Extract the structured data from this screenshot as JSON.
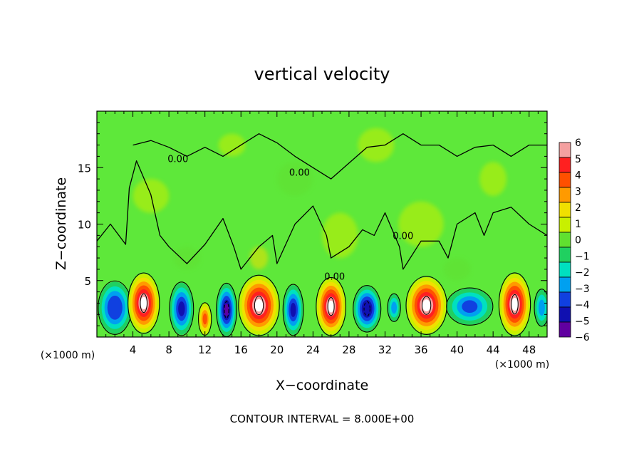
{
  "chart_data": {
    "type": "heatmap",
    "title": "vertical velocity",
    "xlabel": "X−coordinate",
    "ylabel": "Z−coordinate",
    "x_unit_left": "(×1000 m)",
    "x_unit_right": "(×1000 m)",
    "xlim": [
      0,
      50
    ],
    "ylim": [
      0,
      20
    ],
    "x_ticks": [
      4,
      8,
      12,
      16,
      20,
      24,
      28,
      32,
      36,
      40,
      44,
      48
    ],
    "y_ticks": [
      5,
      10,
      15
    ],
    "contour_label": "0.00",
    "colorbar": {
      "levels": [
        6,
        5,
        4,
        3,
        2,
        1,
        0,
        -1,
        -2,
        -3,
        -4,
        -5,
        -6
      ],
      "tick_labels": [
        "6",
        "5",
        "4",
        "3",
        "2",
        "1",
        "0",
        "−1",
        "−2",
        "−3",
        "−4",
        "−5",
        "−6"
      ],
      "colors": [
        "#f4a0a0",
        "#ff2020",
        "#ff5000",
        "#ff9a00",
        "#f0e000",
        "#c8f000",
        "#60e030",
        "#20d060",
        "#00e0c0",
        "#00a0f0",
        "#1040e0",
        "#1010b0",
        "#6000a0"
      ]
    },
    "background_color": "#5ee83a",
    "cells": [
      {
        "x": 2.0,
        "z": 2.6,
        "w": 3.6,
        "h": 4.6,
        "value": -4.5
      },
      {
        "x": 5.2,
        "z": 3.0,
        "w": 3.4,
        "h": 5.2,
        "value": 7.0
      },
      {
        "x": 9.4,
        "z": 2.5,
        "w": 2.6,
        "h": 4.6,
        "value": -5.0
      },
      {
        "x": 12.0,
        "z": 1.6,
        "w": 1.4,
        "h": 2.8,
        "value": 4.0
      },
      {
        "x": 14.4,
        "z": 2.4,
        "w": 2.2,
        "h": 4.6,
        "value": -6.0
      },
      {
        "x": 18.0,
        "z": 2.8,
        "w": 4.4,
        "h": 5.2,
        "value": 7.0
      },
      {
        "x": 21.8,
        "z": 2.4,
        "w": 2.2,
        "h": 4.4,
        "value": -5.0
      },
      {
        "x": 26.0,
        "z": 2.7,
        "w": 3.2,
        "h": 5.0,
        "value": 7.0
      },
      {
        "x": 30.0,
        "z": 2.5,
        "w": 3.0,
        "h": 4.0,
        "value": -5.5
      },
      {
        "x": 33.0,
        "z": 2.6,
        "w": 1.4,
        "h": 2.4,
        "value": -3.0
      },
      {
        "x": 36.6,
        "z": 2.8,
        "w": 4.4,
        "h": 5.0,
        "value": 7.0
      },
      {
        "x": 41.4,
        "z": 2.7,
        "w": 5.0,
        "h": 3.2,
        "value": -4.0
      },
      {
        "x": 46.4,
        "z": 2.9,
        "w": 3.4,
        "h": 5.4,
        "value": 7.0
      },
      {
        "x": 49.4,
        "z": 2.6,
        "w": 1.6,
        "h": 3.2,
        "value": -3.0
      }
    ],
    "texture": [
      {
        "x": 6.0,
        "z": 12.5,
        "w": 4.0,
        "h": 3.0,
        "value": 1.0
      },
      {
        "x": 15.0,
        "z": 17.0,
        "w": 3.0,
        "h": 2.0,
        "value": 1.0
      },
      {
        "x": 27.0,
        "z": 9.0,
        "w": 4.0,
        "h": 4.0,
        "value": 1.0
      },
      {
        "x": 36.0,
        "z": 10.0,
        "w": 5.0,
        "h": 4.0,
        "value": 1.0
      },
      {
        "x": 18.0,
        "z": 7.0,
        "w": 2.0,
        "h": 2.0,
        "value": 1.5
      },
      {
        "x": 44.0,
        "z": 14.0,
        "w": 3.0,
        "h": 3.0,
        "value": 1.0
      },
      {
        "x": 31.0,
        "z": 17.0,
        "w": 4.0,
        "h": 3.0,
        "value": 1.0
      },
      {
        "x": 10.0,
        "z": 7.0,
        "w": 3.0,
        "h": 2.0,
        "value": 0.0
      },
      {
        "x": 40.0,
        "z": 6.0,
        "w": 3.0,
        "h": 2.0,
        "value": 0.0
      },
      {
        "x": 22.0,
        "z": 14.0,
        "w": 4.0,
        "h": 3.0,
        "value": 0.0
      }
    ],
    "contour_path": [
      [
        0.0,
        8.5
      ],
      [
        1.5,
        10.0
      ],
      [
        3.2,
        8.2
      ],
      [
        3.6,
        13.2
      ],
      [
        4.4,
        15.6
      ],
      [
        6.0,
        12.6
      ],
      [
        7.0,
        9.0
      ],
      [
        8.0,
        8.0
      ],
      [
        10.0,
        6.5
      ],
      [
        12.0,
        8.2
      ],
      [
        14.0,
        10.5
      ],
      [
        15.2,
        8.0
      ],
      [
        16.0,
        6.0
      ],
      [
        18.0,
        8.0
      ],
      [
        19.5,
        9.0
      ],
      [
        20.0,
        6.5
      ],
      [
        22.0,
        10.0
      ],
      [
        24.0,
        11.6
      ],
      [
        25.5,
        9.0
      ],
      [
        26.0,
        7.0
      ],
      [
        28.0,
        8.0
      ],
      [
        29.5,
        9.5
      ],
      [
        30.8,
        9.0
      ],
      [
        32.0,
        11.0
      ],
      [
        33.6,
        8.0
      ],
      [
        34.0,
        6.0
      ],
      [
        36.0,
        8.5
      ],
      [
        38.0,
        8.5
      ],
      [
        39.0,
        7.0
      ],
      [
        40.0,
        10.0
      ],
      [
        42.0,
        11.0
      ],
      [
        43.0,
        9.0
      ],
      [
        44.0,
        11.0
      ],
      [
        46.0,
        11.5
      ],
      [
        48.0,
        10.0
      ],
      [
        50.0,
        9.0
      ]
    ],
    "contour_path_top": [
      [
        4.0,
        17.0
      ],
      [
        6.0,
        17.4
      ],
      [
        8.0,
        16.8
      ],
      [
        10.0,
        16.0
      ],
      [
        12.0,
        16.8
      ],
      [
        14.0,
        16.0
      ],
      [
        16.0,
        17.0
      ],
      [
        18.0,
        18.0
      ],
      [
        20.0,
        17.2
      ],
      [
        22.0,
        16.0
      ],
      [
        24.0,
        15.0
      ],
      [
        26.0,
        14.0
      ],
      [
        28.0,
        15.4
      ],
      [
        30.0,
        16.8
      ],
      [
        32.0,
        17.0
      ],
      [
        34.0,
        18.0
      ],
      [
        36.0,
        17.0
      ],
      [
        38.0,
        17.0
      ],
      [
        40.0,
        16.0
      ],
      [
        42.0,
        16.8
      ],
      [
        44.0,
        17.0
      ],
      [
        46.0,
        16.0
      ],
      [
        48.0,
        17.0
      ],
      [
        50.0,
        17.0
      ]
    ],
    "contour_label_positions": [
      [
        9.0,
        15.8
      ],
      [
        22.5,
        14.6
      ],
      [
        34.0,
        9.0
      ],
      [
        26.4,
        5.4
      ]
    ]
  },
  "footer": {
    "contour_interval": "CONTOUR INTERVAL =  8.000E+00"
  }
}
